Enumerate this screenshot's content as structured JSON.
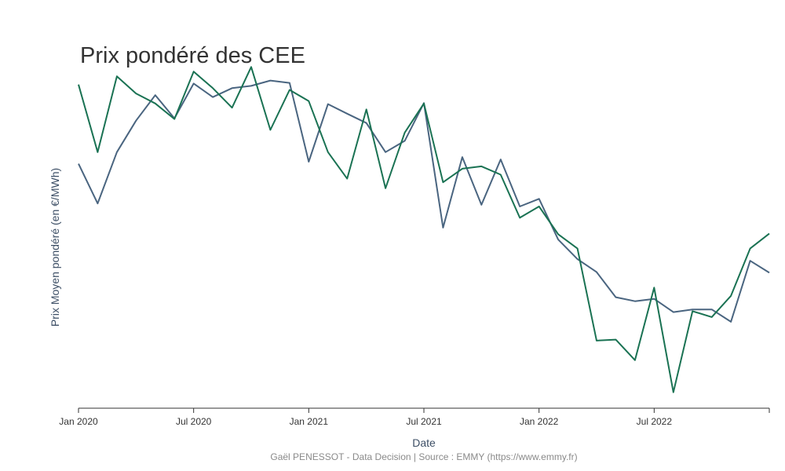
{
  "chart_data": {
    "type": "line",
    "title": "Prix pondéré des CEE",
    "xlabel": "Date",
    "ylabel": "Prix Moyen pondéré (en €/MWh)",
    "caption": "Gaël PENESSOT - Data Decision | Source : EMMY (https://www.emmy.fr)",
    "x_ticks": [
      "Jan 2020",
      "Jul 2020",
      "Jan 2021",
      "Jul 2021",
      "Jan 2022",
      "Jul 2022"
    ],
    "x_tick_months": [
      0,
      6,
      12,
      18,
      24,
      30
    ],
    "x_range": [
      0,
      36
    ],
    "y_range": [
      0,
      10
    ],
    "grid": false,
    "legend": false,
    "x": [
      0,
      1,
      2,
      3,
      4,
      5,
      6,
      7,
      8,
      9,
      10,
      11,
      12,
      13,
      14,
      15,
      16,
      17,
      18,
      19,
      20,
      21,
      22,
      23,
      24,
      25,
      26,
      27,
      28,
      29,
      30,
      31,
      32,
      33,
      34,
      35,
      36
    ],
    "series": [
      {
        "color": "#4a6580",
        "values": [
          7.38,
          6.18,
          7.73,
          8.68,
          9.45,
          8.75,
          9.8,
          9.39,
          9.66,
          9.73,
          9.89,
          9.82,
          7.44,
          9.18,
          8.89,
          8.61,
          7.73,
          8.07,
          9.21,
          5.45,
          7.58,
          6.14,
          7.51,
          6.09,
          6.32,
          5.09,
          4.5,
          4.11,
          3.35,
          3.23,
          3.3,
          2.9,
          2.98,
          2.98,
          2.61,
          4.45,
          4.09
        ]
      },
      {
        "color": "#1a7253",
        "values": [
          9.77,
          7.73,
          10.02,
          9.5,
          9.2,
          8.73,
          10.16,
          9.66,
          9.07,
          10.3,
          8.4,
          9.61,
          9.27,
          7.73,
          6.93,
          9.02,
          6.64,
          8.32,
          9.2,
          6.82,
          7.23,
          7.3,
          7.05,
          5.75,
          6.09,
          5.25,
          4.82,
          2.04,
          2.07,
          1.45,
          3.64,
          0.48,
          2.93,
          2.75,
          3.39,
          4.82,
          5.27
        ]
      }
    ]
  }
}
